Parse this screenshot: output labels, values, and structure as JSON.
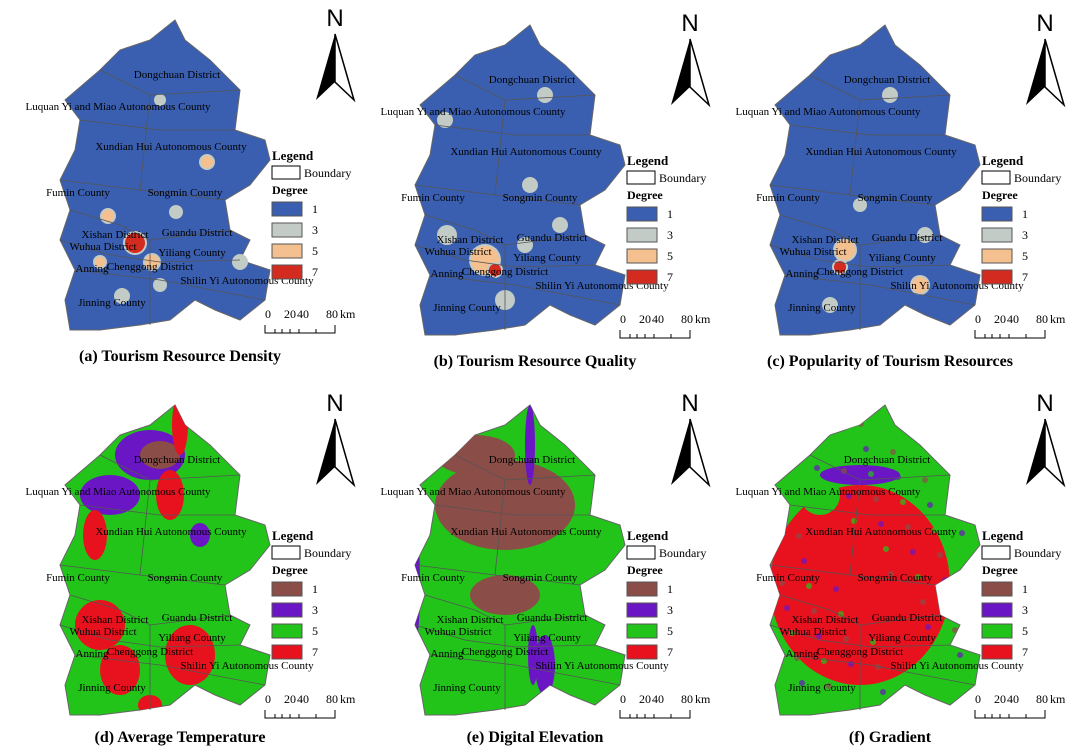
{
  "north": "N",
  "legend": {
    "title": "Legend",
    "boundary": "Boundary",
    "degree_title": "Degree"
  },
  "scale_bar": {
    "labels": [
      "0",
      "20",
      "40",
      "80"
    ],
    "unit": "km"
  },
  "district_labels": [
    "Dongchuan District",
    "Luquan Yi and Miao Autonomous County",
    "Xundian Hui Autonomous County",
    "Fumin County",
    "Songmin County",
    "Xishan District",
    "Guandu District",
    "Wuhua District",
    "Yiliang County",
    "Anning",
    "Chenggong District",
    "Shilin Yi Autonomous County",
    "Jinning County"
  ],
  "panels": [
    {
      "caption": "(a) Tourism Resource Density",
      "degrees": [
        {
          "label": "1",
          "color": "#3a5fb0"
        },
        {
          "label": "3",
          "color": "#c3cbc6"
        },
        {
          "label": "5",
          "color": "#f5c08f"
        },
        {
          "label": "7",
          "color": "#d42b20"
        }
      ]
    },
    {
      "caption": "(b) Tourism Resource Quality",
      "degrees": [
        {
          "label": "1",
          "color": "#3a5fb0"
        },
        {
          "label": "3",
          "color": "#c3cbc6"
        },
        {
          "label": "5",
          "color": "#f5c08f"
        },
        {
          "label": "7",
          "color": "#d42b20"
        }
      ]
    },
    {
      "caption": "(c) Popularity of Tourism Resources",
      "degrees": [
        {
          "label": "1",
          "color": "#3a5fb0"
        },
        {
          "label": "3",
          "color": "#c3cbc6"
        },
        {
          "label": "5",
          "color": "#f5c08f"
        },
        {
          "label": "7",
          "color": "#d42b20"
        }
      ]
    },
    {
      "caption": "(d) Average Temperature",
      "degrees": [
        {
          "label": "1",
          "color": "#8b4d47"
        },
        {
          "label": "3",
          "color": "#6a16c4"
        },
        {
          "label": "5",
          "color": "#22c41a"
        },
        {
          "label": "7",
          "color": "#e8121f"
        }
      ]
    },
    {
      "caption": "(e) Digital Elevation",
      "degrees": [
        {
          "label": "1",
          "color": "#8b4d47"
        },
        {
          "label": "3",
          "color": "#6a16c4"
        },
        {
          "label": "5",
          "color": "#22c41a"
        },
        {
          "label": "7",
          "color": "#e8121f"
        }
      ]
    },
    {
      "caption": "(f) Gradient",
      "degrees": [
        {
          "label": "1",
          "color": "#8b4d47"
        },
        {
          "label": "3",
          "color": "#6a16c4"
        },
        {
          "label": "5",
          "color": "#22c41a"
        },
        {
          "label": "7",
          "color": "#e8121f"
        }
      ]
    }
  ]
}
